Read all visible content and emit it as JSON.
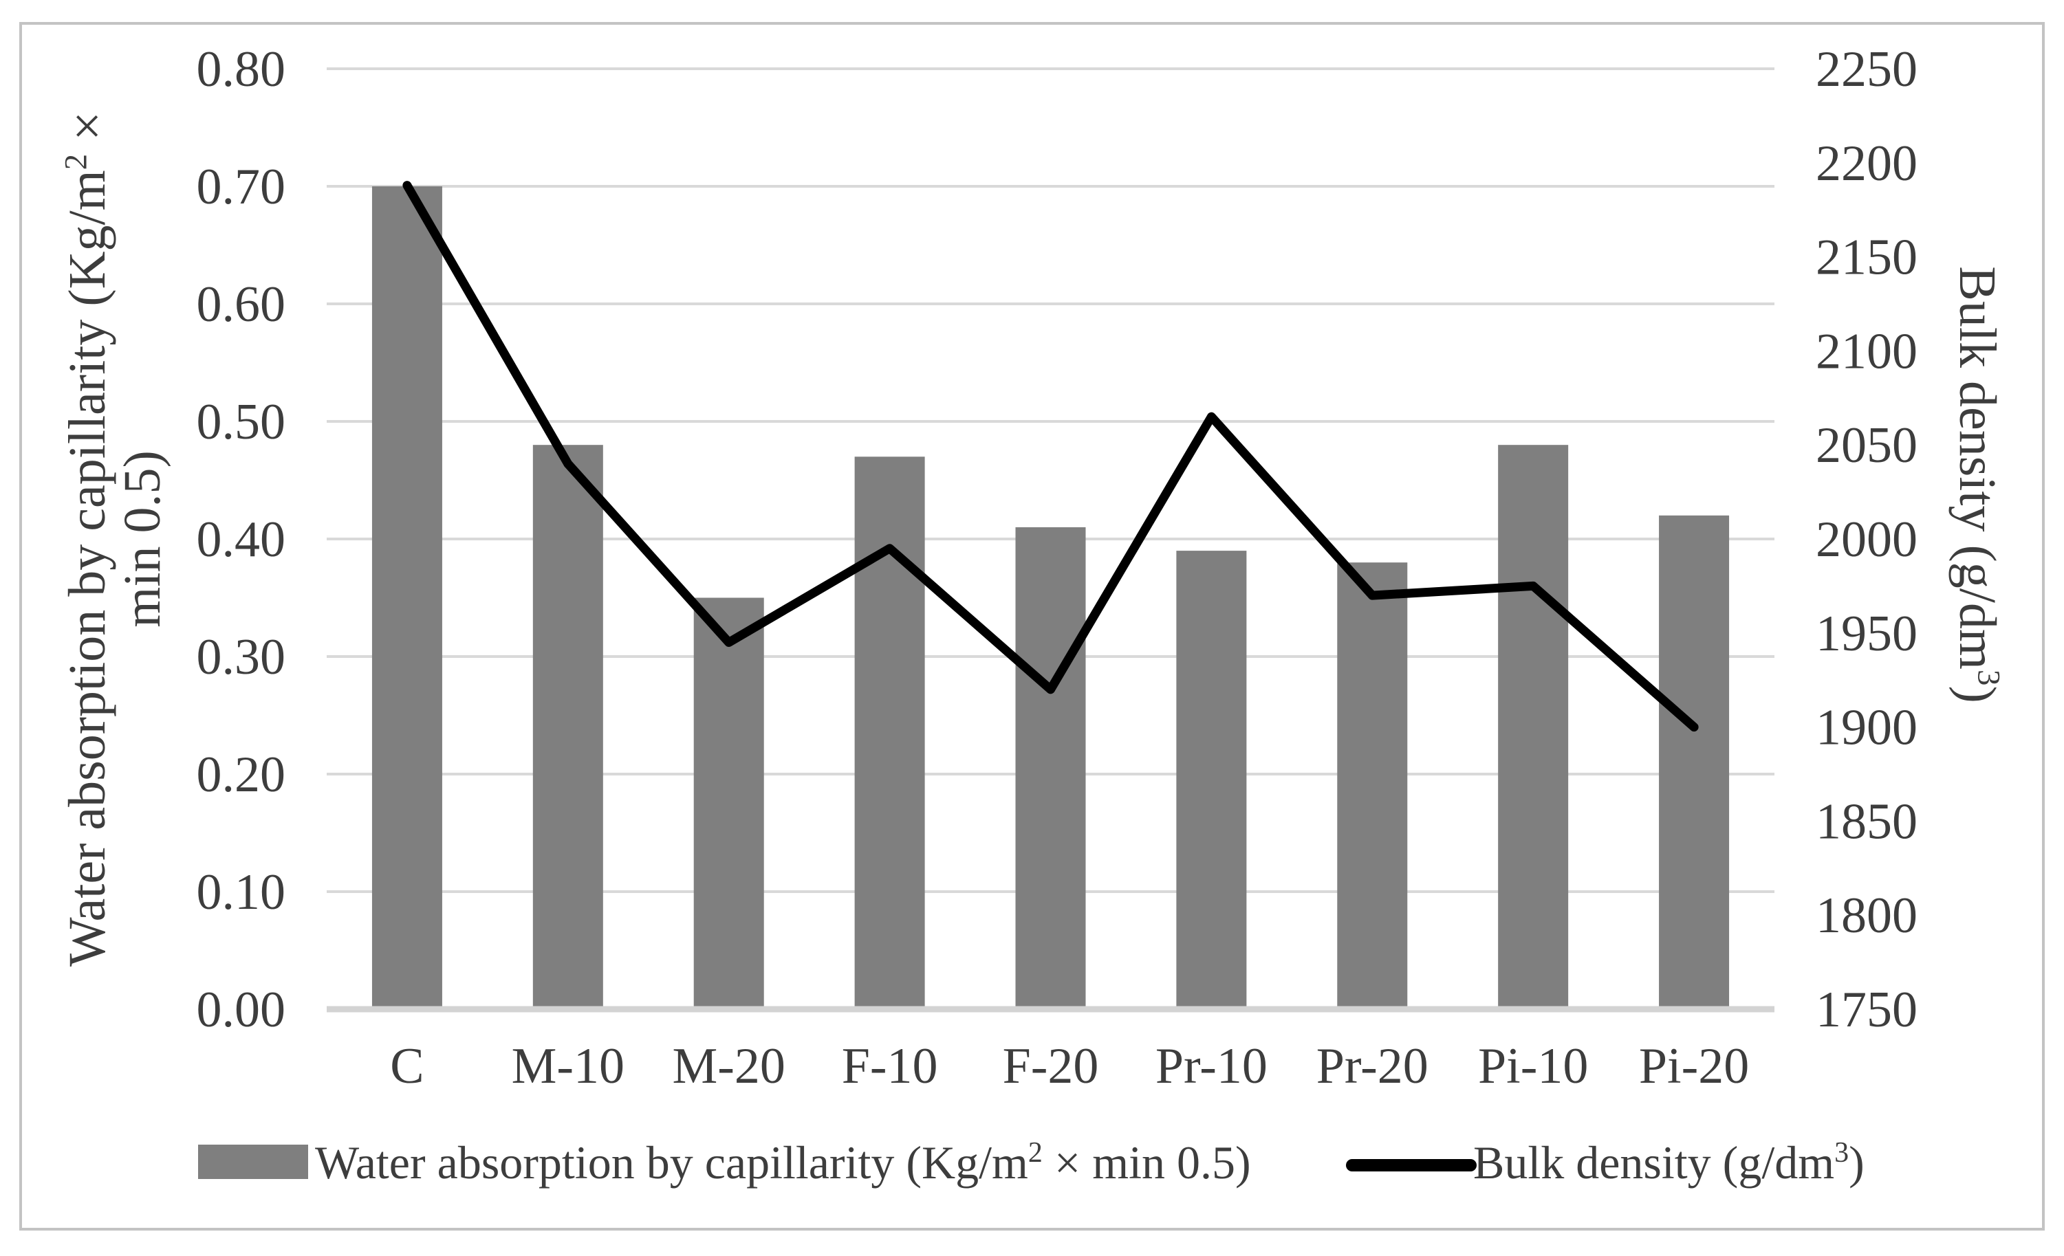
{
  "chart_data": {
    "type": "combo-bar-line",
    "categories": [
      "C",
      "M-10",
      "M-20",
      "F-10",
      "F-20",
      "Pr-10",
      "Pr-20",
      "Pi-10",
      "Pi-20"
    ],
    "series": [
      {
        "name": "Water absorption by capillarity (Kg/m2 × min 0.5)",
        "type": "bar",
        "axis": "left",
        "color": "#7f7f7f",
        "values": [
          0.7,
          0.48,
          0.35,
          0.47,
          0.41,
          0.39,
          0.38,
          0.48,
          0.42
        ]
      },
      {
        "name": "Bulk density (g/dm3)",
        "type": "line",
        "axis": "right",
        "color": "#000000",
        "values": [
          2188,
          2040,
          1945,
          1995,
          1920,
          2065,
          1970,
          1975,
          1900
        ]
      }
    ],
    "left_axis": {
      "min": 0.0,
      "max": 0.8,
      "step": 0.1,
      "tick_labels": [
        "0.00",
        "0.10",
        "0.20",
        "0.30",
        "0.40",
        "0.50",
        "0.60",
        "0.70",
        "0.80"
      ],
      "title_lines": [
        [
          {
            "t": "Water absorption by capillarity (Kg/m"
          },
          {
            "t": "2",
            "sup": true
          },
          {
            "t": " ×"
          }
        ],
        [
          {
            "t": "min 0.5)"
          }
        ]
      ]
    },
    "right_axis": {
      "min": 1750,
      "max": 2250,
      "step": 50,
      "tick_labels": [
        "1750",
        "1800",
        "1850",
        "1900",
        "1950",
        "2000",
        "2050",
        "2100",
        "2150",
        "2200",
        "2250"
      ],
      "title": [
        {
          "t": "Bulk density (g/dm"
        },
        {
          "t": "3",
          "sup": true
        },
        {
          "t": ")"
        }
      ]
    },
    "grid": "horizontal",
    "legend_position": "bottom",
    "legend": [
      {
        "marker": "bar-swatch",
        "segments": [
          {
            "t": "Water absorption by capillarity (Kg/m"
          },
          {
            "t": "2",
            "sup": true
          },
          {
            "t": " × min 0.5)"
          }
        ]
      },
      {
        "marker": "line-swatch",
        "segments": [
          {
            "t": "Bulk density (g/dm"
          },
          {
            "t": "3",
            "sup": true
          },
          {
            "t": ")"
          }
        ]
      }
    ],
    "colors": {
      "bar": "#7f7f7f",
      "line": "#000000",
      "grid": "#d9d9d9",
      "axis_line": "#d3d3d3",
      "text": "#3d3d3d",
      "border": "#c3c3c3",
      "background": "#ffffff"
    }
  }
}
